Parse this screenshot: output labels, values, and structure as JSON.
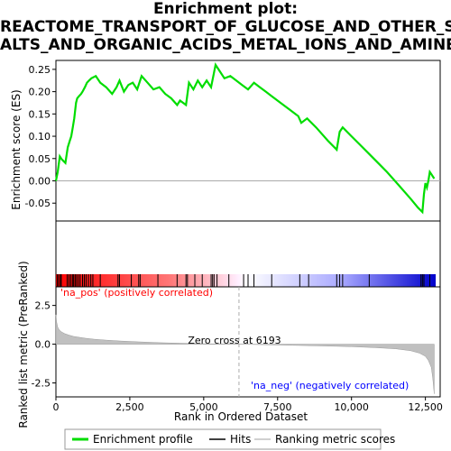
{
  "title_lines": [
    "Enrichment plot:",
    "REACTOME_TRANSPORT_OF_GLUCOSE_AND_OTHER_S",
    "ALTS_AND_ORGANIC_ACIDS_METAL_IONS_AND_AMINE_"
  ],
  "chart_data": {
    "type": "line",
    "es_panel": {
      "ylabel": "Enrichment score (ES)",
      "ylim": [
        -0.09,
        0.27
      ],
      "yticks": [
        -0.05,
        0.0,
        0.05,
        0.1,
        0.15,
        0.2,
        0.25
      ],
      "ytick_labels": [
        "-0.05",
        "0.00",
        "0.05",
        "0.10",
        "0.15",
        "0.20",
        "0.25"
      ],
      "series": [
        {
          "name": "Enrichment profile",
          "color": "#00dd00",
          "x": [
            0,
            60,
            130,
            200,
            320,
            400,
            470,
            520,
            570,
            620,
            680,
            720,
            780,
            850,
            900,
            980,
            1050,
            1120,
            1200,
            1350,
            1500,
            1700,
            1900,
            2050,
            2150,
            2300,
            2450,
            2600,
            2750,
            2900,
            3100,
            3300,
            3500,
            3700,
            3900,
            4100,
            4200,
            4400,
            4500,
            4650,
            4800,
            4950,
            5100,
            5250,
            5400,
            5550,
            5700,
            5900,
            6100,
            6300,
            6500,
            6700,
            6900,
            7100,
            7300,
            7600,
            7900,
            8200,
            8300,
            8500,
            8800,
            9200,
            9500,
            9600,
            9700,
            10000,
            10300,
            10600,
            10900,
            11200,
            11600,
            12000,
            12250,
            12400,
            12450,
            12500,
            12550,
            12600,
            12650,
            12700,
            12800
          ],
          "y": [
            0.0,
            0.02,
            0.055,
            0.048,
            0.04,
            0.075,
            0.09,
            0.1,
            0.12,
            0.14,
            0.175,
            0.185,
            0.19,
            0.195,
            0.2,
            0.21,
            0.22,
            0.225,
            0.23,
            0.235,
            0.22,
            0.21,
            0.195,
            0.21,
            0.225,
            0.2,
            0.215,
            0.22,
            0.205,
            0.235,
            0.22,
            0.205,
            0.21,
            0.195,
            0.185,
            0.17,
            0.18,
            0.17,
            0.22,
            0.205,
            0.225,
            0.21,
            0.225,
            0.21,
            0.26,
            0.245,
            0.23,
            0.235,
            0.225,
            0.215,
            0.205,
            0.22,
            0.21,
            0.2,
            0.19,
            0.175,
            0.16,
            0.145,
            0.13,
            0.14,
            0.12,
            0.09,
            0.07,
            0.11,
            0.12,
            0.1,
            0.08,
            0.06,
            0.04,
            0.02,
            -0.01,
            -0.04,
            -0.06,
            -0.07,
            -0.03,
            -0.005,
            -0.015,
            0.0,
            0.02,
            0.015,
            0.005
          ]
        }
      ]
    },
    "hits": [
      40,
      90,
      150,
      180,
      380,
      440,
      500,
      560,
      600,
      650,
      700,
      760,
      820,
      900,
      960,
      1020,
      1100,
      1180,
      1250,
      1500,
      2100,
      2150,
      2550,
      2800,
      2850,
      3450,
      4100,
      4400,
      4450,
      4700,
      4950,
      5250,
      5300,
      5350,
      5450,
      5850,
      6350,
      6500,
      6700,
      7300,
      8250,
      8550,
      9500,
      9600,
      9700,
      10600,
      12350,
      12400,
      12450,
      12650
    ],
    "metric_panel": {
      "ylabel": "Ranked list metric (PreRanked)",
      "ylim": [
        -3.4,
        3.7
      ],
      "yticks": [
        -2.5,
        0.0,
        2.5
      ],
      "ytick_labels": [
        "-2.5",
        "0.0",
        "2.5"
      ],
      "series": [
        {
          "name": "Ranking metric scores",
          "color": "#c0c0c0",
          "x": [
            0,
            20,
            60,
            120,
            200,
            300,
            450,
            600,
            800,
            1000,
            1300,
            1700,
            2200,
            2800,
            3500,
            4200,
            5000,
            5600,
            6193,
            7000,
            8000,
            9000,
            10000,
            10800,
            11500,
            12000,
            12300,
            12500,
            12600,
            12700,
            12750,
            12800
          ],
          "y": [
            1.9,
            1.45,
            1.1,
            0.9,
            0.78,
            0.68,
            0.58,
            0.5,
            0.44,
            0.38,
            0.32,
            0.26,
            0.2,
            0.15,
            0.1,
            0.06,
            0.03,
            0.01,
            0.0,
            -0.03,
            -0.07,
            -0.11,
            -0.16,
            -0.22,
            -0.3,
            -0.42,
            -0.58,
            -0.78,
            -1.05,
            -1.5,
            -2.2,
            -3.2
          ]
        }
      ],
      "zero_cross_label": "Zero cross at 6193",
      "zero_cross": 6193,
      "pos_label": "'na_pos' (positively correlated)",
      "neg_label": "'na_neg' (negatively correlated)"
    },
    "xlabel": "Rank in Ordered Dataset",
    "xlim": [
      0,
      13000
    ],
    "xticks": [
      0,
      2500,
      5000,
      7500,
      10000,
      12500
    ],
    "xtick_labels": [
      "0",
      "2,500",
      "5,000",
      "7,500",
      "10,000",
      "12,500"
    ],
    "n_genes": 12848,
    "colors": {
      "enrichment": "#00dd00",
      "hits": "#000000",
      "pos": "#ff0000",
      "neg": "#0000ff",
      "zero_line": "#aaaaaa"
    }
  },
  "legend": [
    {
      "label": "Enrichment profile",
      "color": "#00dd00",
      "style": "line"
    },
    {
      "label": "Hits",
      "color": "#000000",
      "style": "line"
    },
    {
      "label": "Ranking metric scores",
      "color": "#c0c0c0",
      "style": "line"
    }
  ]
}
